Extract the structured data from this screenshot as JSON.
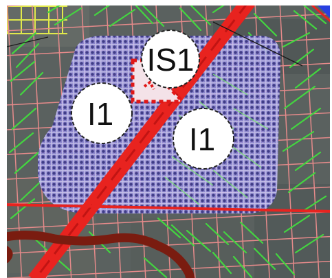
{
  "map": {
    "colors": {
      "imagery_base": "#5a615f",
      "parcel_grid": "#e58a8a",
      "vegetation_hatch": "#43d640",
      "zone_fill": "#8f88d6",
      "zone_dots": "#3e3a8a",
      "road": "#e8231f",
      "road_centerline": "#b41010",
      "boundary": "#7a1c10",
      "special_zone_outline": "#e01818",
      "label_fill": "#ffffff",
      "label_outline": "#222222",
      "highlight_yellow": "#e8f04a",
      "highlight_blue": "#2840e0"
    },
    "zone_labels": [
      {
        "id": "label-is1",
        "text": "IS1"
      },
      {
        "id": "label-i1-left",
        "text": "I1"
      },
      {
        "id": "label-i1-right",
        "text": "I1"
      }
    ]
  }
}
